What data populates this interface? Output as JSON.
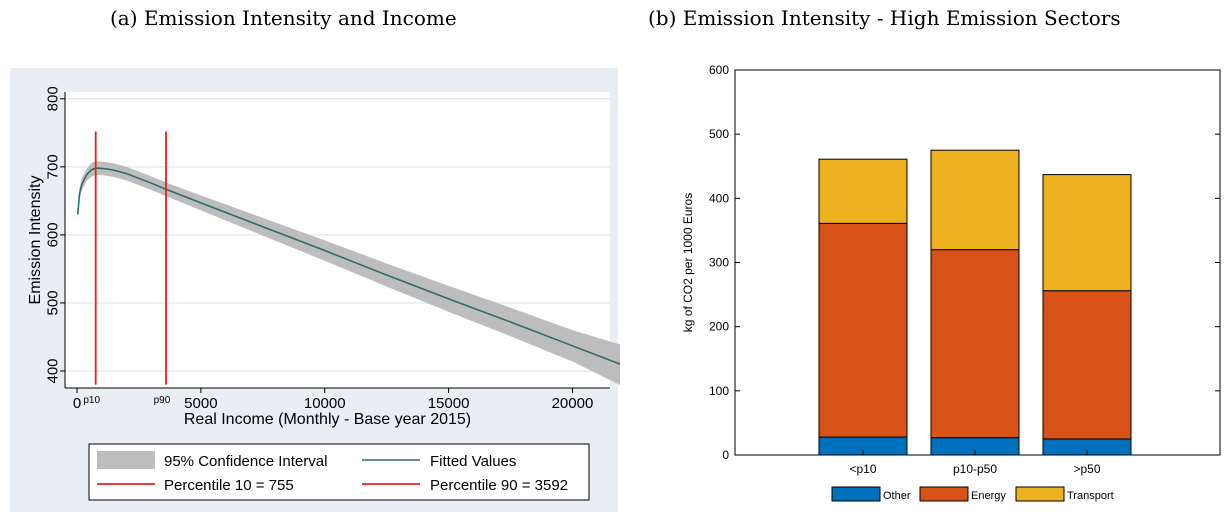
{
  "captions": {
    "a": "(a) Emission Intensity and Income",
    "b": "(b) Emission Intensity - High Emission Sectors"
  },
  "colors": {
    "panel_a_bg": "#e8eef3",
    "panel_a_plot_bg": "#ffffff",
    "ci_band": "#bdbdbd",
    "fitted_line": "#2e6b6b",
    "percentile_line": "#e5221a",
    "other": "#0072bd",
    "energy": "#d95319",
    "transport": "#edb120"
  },
  "chart_data": [
    {
      "id": "a",
      "type": "line",
      "title": "",
      "xlabel": "Real Income (Monthly - Base year 2015)",
      "ylabel": "Emission Intensity",
      "xlim": [
        0,
        22000
      ],
      "ylim": [
        375,
        810
      ],
      "xticks": [
        0,
        5000,
        10000,
        15000,
        20000
      ],
      "xtick_labels": [
        "0",
        "5000",
        "10000",
        "15000",
        "20000"
      ],
      "yticks": [
        400,
        500,
        600,
        700,
        800
      ],
      "ytick_labels": [
        "400",
        "500",
        "600",
        "700",
        "800"
      ],
      "grid": true,
      "series": [
        {
          "name": "Fitted Values",
          "x": [
            30,
            100,
            200,
            400,
            600,
            755,
            900,
            1200,
            1500,
            2000,
            3000,
            3592,
            5000,
            7500,
            10000,
            12500,
            15000,
            17500,
            20000,
            22000
          ],
          "y": [
            630,
            660,
            675,
            689,
            696,
            698,
            698,
            697,
            695,
            690,
            676,
            667,
            647,
            612,
            577,
            541,
            506,
            472,
            437,
            409
          ]
        }
      ],
      "confidence_band": {
        "name": "95% Confidence Interval",
        "x": [
          30,
          100,
          200,
          400,
          600,
          755,
          900,
          1200,
          1500,
          2000,
          3000,
          3592,
          5000,
          7500,
          10000,
          12500,
          15000,
          17500,
          20000,
          22000
        ],
        "upper": [
          638,
          668,
          684,
          698,
          706,
          708,
          708,
          707,
          705,
          700,
          686,
          677,
          658,
          625,
          592,
          558,
          525,
          493,
          460,
          438
        ],
        "lower": [
          622,
          652,
          666,
          680,
          686,
          688,
          688,
          687,
          685,
          680,
          666,
          657,
          636,
          599,
          562,
          524,
          487,
          451,
          414,
          378
        ]
      },
      "vlines": [
        {
          "name": "Percentile 10 = 755",
          "x": 755,
          "label": "p10",
          "y_range": [
            380,
            752
          ]
        },
        {
          "name": "Percentile 90 = 3592",
          "x": 3592,
          "label": "p90",
          "y_range": [
            380,
            752
          ]
        }
      ],
      "legend": {
        "placement": "bottom",
        "entries": [
          "95% Confidence Interval",
          "Fitted Values",
          "Percentile 10 = 755",
          "Percentile 90 = 3592"
        ]
      }
    },
    {
      "id": "b",
      "type": "bar",
      "stacked": true,
      "title": "",
      "xlabel": "",
      "ylabel": "kg of CO2 per 1000 Euros",
      "categories": [
        "<p10",
        "p10-p50",
        ">p50"
      ],
      "ylim": [
        0,
        600
      ],
      "yticks": [
        0,
        100,
        200,
        300,
        400,
        500,
        600
      ],
      "ytick_labels": [
        "0",
        "100",
        "200",
        "300",
        "400",
        "500",
        "600"
      ],
      "grid": false,
      "series": [
        {
          "name": "Other",
          "values": [
            28,
            27,
            25
          ]
        },
        {
          "name": "Energy",
          "values": [
            333,
            293,
            231
          ]
        },
        {
          "name": "Transport",
          "values": [
            100,
            155,
            181
          ]
        }
      ],
      "legend": {
        "placement": "bottom",
        "entries": [
          "Other",
          "Energy",
          "Transport"
        ]
      }
    }
  ]
}
